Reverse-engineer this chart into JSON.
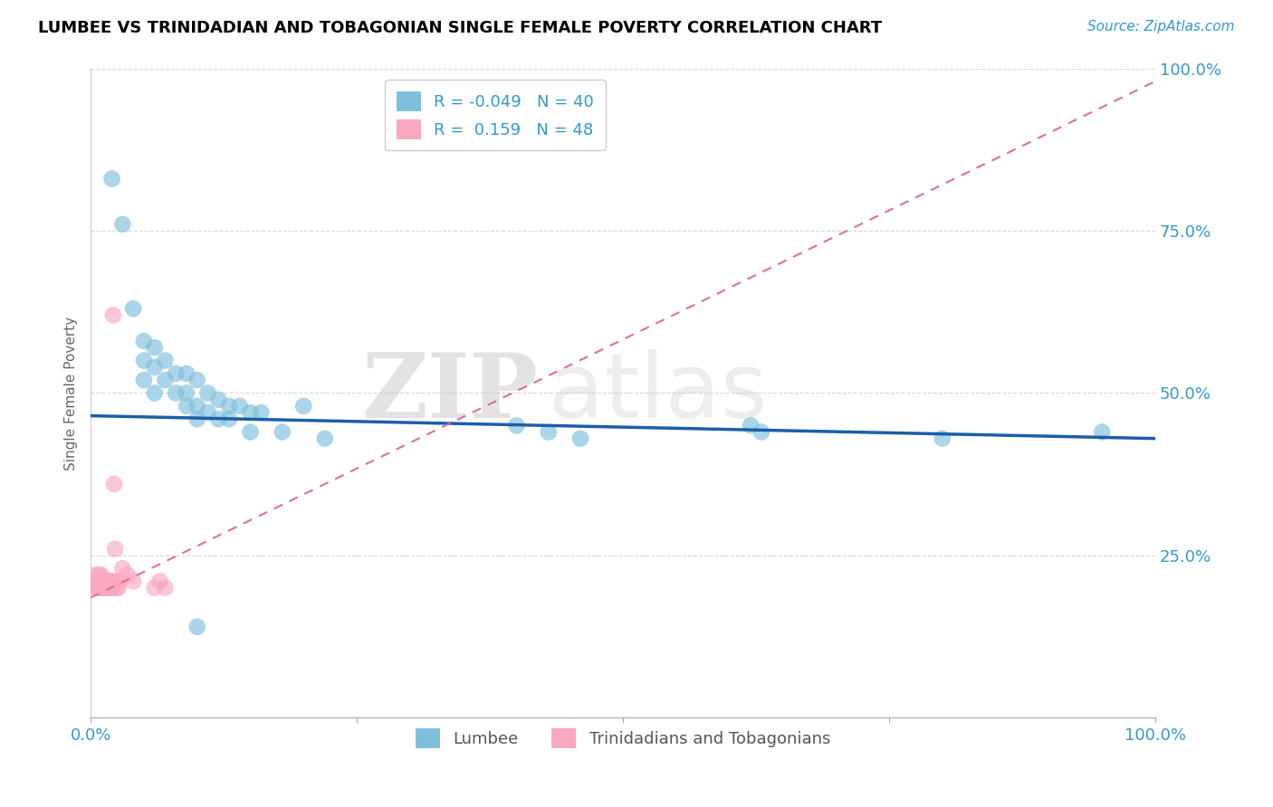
{
  "title": "LUMBEE VS TRINIDADIAN AND TOBAGONIAN SINGLE FEMALE POVERTY CORRELATION CHART",
  "source": "Source: ZipAtlas.com",
  "ylabel": "Single Female Poverty",
  "watermark_zip": "ZIP",
  "watermark_atlas": "atlas",
  "xlim": [
    0,
    1
  ],
  "ylim": [
    0,
    1
  ],
  "lumbee_color": "#7fbfdd",
  "tnt_color": "#f9a8c0",
  "lumbee_r": -0.049,
  "lumbee_n": 40,
  "tnt_r": 0.159,
  "tnt_n": 48,
  "lumbee_label": "Lumbee",
  "tnt_label": "Trinidadians and Tobagonians",
  "lumbee_trend_color": "#1a5fa8",
  "tnt_trend_color": "#e07090",
  "background_color": "#ffffff",
  "grid_color": "#cccccc",
  "text_color": "#3399cc",
  "lumbee_x": [
    0.02,
    0.03,
    0.04,
    0.05,
    0.05,
    0.05,
    0.06,
    0.06,
    0.06,
    0.07,
    0.07,
    0.08,
    0.08,
    0.09,
    0.09,
    0.09,
    0.1,
    0.1,
    0.1,
    0.11,
    0.11,
    0.12,
    0.12,
    0.13,
    0.13,
    0.14,
    0.15,
    0.15,
    0.16,
    0.18,
    0.2,
    0.22,
    0.4,
    0.43,
    0.46,
    0.62,
    0.63,
    0.8,
    0.95,
    0.1
  ],
  "lumbee_y": [
    0.83,
    0.76,
    0.63,
    0.55,
    0.58,
    0.52,
    0.54,
    0.57,
    0.5,
    0.52,
    0.55,
    0.5,
    0.53,
    0.48,
    0.5,
    0.53,
    0.46,
    0.48,
    0.52,
    0.47,
    0.5,
    0.46,
    0.49,
    0.46,
    0.48,
    0.48,
    0.47,
    0.44,
    0.47,
    0.44,
    0.48,
    0.43,
    0.45,
    0.44,
    0.43,
    0.45,
    0.44,
    0.43,
    0.44,
    0.14
  ],
  "tnt_x": [
    0.005,
    0.005,
    0.005,
    0.006,
    0.006,
    0.007,
    0.007,
    0.008,
    0.008,
    0.008,
    0.009,
    0.009,
    0.01,
    0.01,
    0.01,
    0.011,
    0.011,
    0.012,
    0.012,
    0.013,
    0.013,
    0.014,
    0.014,
    0.015,
    0.015,
    0.016,
    0.016,
    0.017,
    0.017,
    0.018,
    0.018,
    0.019,
    0.019,
    0.02,
    0.02,
    0.021,
    0.022,
    0.023,
    0.024,
    0.025,
    0.026,
    0.027,
    0.03,
    0.035,
    0.04,
    0.06,
    0.065,
    0.07
  ],
  "tnt_y": [
    0.2,
    0.21,
    0.22,
    0.2,
    0.21,
    0.2,
    0.21,
    0.2,
    0.21,
    0.22,
    0.2,
    0.21,
    0.2,
    0.21,
    0.22,
    0.2,
    0.21,
    0.2,
    0.21,
    0.2,
    0.21,
    0.2,
    0.21,
    0.2,
    0.21,
    0.2,
    0.21,
    0.2,
    0.21,
    0.2,
    0.21,
    0.2,
    0.21,
    0.2,
    0.21,
    0.62,
    0.36,
    0.26,
    0.2,
    0.21,
    0.2,
    0.21,
    0.23,
    0.22,
    0.21,
    0.2,
    0.21,
    0.2
  ],
  "lumbee_trend_x": [
    0.0,
    1.0
  ],
  "lumbee_trend_y": [
    0.465,
    0.43
  ],
  "tnt_trend_x": [
    0.0,
    1.0
  ],
  "tnt_trend_y": [
    0.185,
    0.98
  ]
}
